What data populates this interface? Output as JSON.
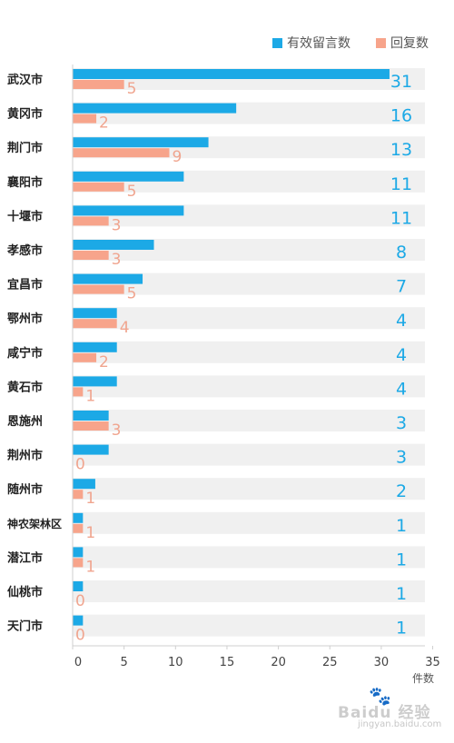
{
  "chart_data": {
    "type": "bar",
    "orientation": "horizontal",
    "categories": [
      "武汉市",
      "黄冈市",
      "荆门市",
      "襄阳市",
      "十堰市",
      "孝感市",
      "宜昌市",
      "鄂州市",
      "咸宁市",
      "黄石市",
      "恩施州",
      "荆州市",
      "随州市",
      "神农架林区",
      "潜江市",
      "仙桃市",
      "天门市"
    ],
    "series": [
      {
        "name": "有效留言数",
        "color": "#1ca9e6",
        "values": [
          31,
          16,
          13,
          11,
          11,
          8,
          7,
          4,
          4,
          4,
          3,
          3,
          2,
          1,
          1,
          1,
          1
        ]
      },
      {
        "name": "回复数",
        "color": "#f7a48b",
        "values": [
          5,
          2,
          9,
          5,
          3,
          3,
          5,
          4,
          2,
          1,
          3,
          0,
          1,
          1,
          1,
          0,
          0
        ]
      }
    ],
    "bar_scale": {
      "blue_lengths": [
        30.8,
        15.9,
        13.2,
        10.8,
        10.8,
        7.9,
        6.8,
        4.3,
        4.3,
        4.3,
        3.5,
        3.5,
        2.2,
        1.0,
        1.0,
        1.0,
        1.0
      ],
      "salmon_lengths": [
        5.0,
        2.3,
        9.4,
        5.0,
        3.5,
        3.5,
        5.0,
        4.3,
        2.3,
        1.0,
        3.5,
        0,
        1.0,
        1.0,
        1.0,
        0,
        0
      ]
    },
    "xlim": [
      0,
      35
    ],
    "xticks": [
      0,
      5,
      10,
      15,
      20,
      25,
      30,
      35
    ],
    "xlabel": "件数",
    "ylabel": "",
    "title": "",
    "legend_position": "top-right",
    "grid": false,
    "row_band_color": "#f0f0f0",
    "total_label_color": "#1ca9e6",
    "reply_label_color": "#f0a58f"
  },
  "watermark": {
    "paw": "🐾",
    "text": "Baidu 经验",
    "url": "jingyan.baidu.com"
  }
}
